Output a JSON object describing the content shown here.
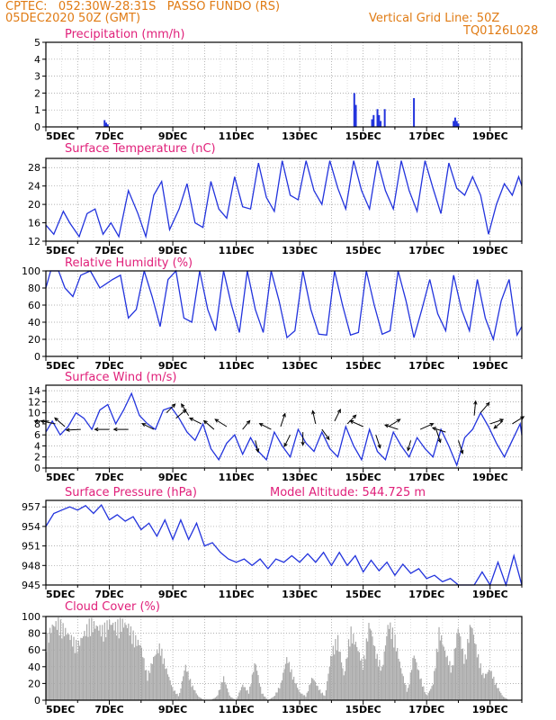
{
  "header": {
    "line1": "CPTEC:   052:30W-28:31S   PASSO FUNDO (RS)",
    "line2": "05DEC2020 50Z (GMT)",
    "grid_note": "Vertical Grid Line: 50Z",
    "code": "TQ0126L028"
  },
  "colors": {
    "header": "#e07b14",
    "title": "#e0207a",
    "line": "#2233dd",
    "cloud": "#a9a9a9",
    "arrows": "#000000",
    "grid": "#999999"
  },
  "chart_data": [
    {
      "type": "bar",
      "title": "Precipitation (mm/h)",
      "ylim": [
        0,
        5
      ],
      "yticks": [
        0,
        1,
        2,
        3,
        4,
        5
      ],
      "xticks": [
        "5DEC",
        "7DEC",
        "9DEC",
        "11DEC",
        "13DEC",
        "15DEC",
        "17DEC",
        "19DEC"
      ],
      "xlim_days": [
        5,
        20
      ],
      "grid": "dotted",
      "points": [
        [
          6.85,
          0.4
        ],
        [
          6.9,
          0.25
        ],
        [
          6.95,
          0.15
        ],
        [
          14.72,
          2.0
        ],
        [
          14.77,
          1.3
        ],
        [
          15.28,
          0.45
        ],
        [
          15.33,
          0.7
        ],
        [
          15.45,
          1.05
        ],
        [
          15.5,
          0.7
        ],
        [
          15.55,
          0.35
        ],
        [
          15.68,
          1.05
        ],
        [
          16.6,
          1.7
        ],
        [
          17.85,
          0.35
        ],
        [
          17.9,
          0.55
        ],
        [
          17.95,
          0.35
        ],
        [
          18.0,
          0.2
        ]
      ]
    },
    {
      "type": "line",
      "title": "Surface Temperature (nC)",
      "ylim": [
        12,
        30
      ],
      "yticks": [
        12,
        16,
        20,
        24,
        28
      ],
      "xticks": [
        "5DEC",
        "7DEC",
        "9DEC",
        "11DEC",
        "13DEC",
        "15DEC",
        "17DEC",
        "19DEC"
      ],
      "xlim_days": [
        5,
        20
      ],
      "grid": "dotted",
      "x": [
        5.0,
        5.25,
        5.55,
        5.75,
        6.05,
        6.3,
        6.55,
        6.8,
        7.05,
        7.3,
        7.6,
        7.9,
        8.15,
        8.4,
        8.65,
        8.9,
        9.2,
        9.45,
        9.7,
        9.95,
        10.2,
        10.45,
        10.7,
        10.95,
        11.2,
        11.45,
        11.7,
        11.95,
        12.2,
        12.45,
        12.7,
        12.95,
        13.2,
        13.45,
        13.7,
        13.95,
        14.2,
        14.45,
        14.7,
        14.95,
        15.2,
        15.45,
        15.7,
        15.95,
        16.2,
        16.45,
        16.7,
        16.95,
        17.2,
        17.45,
        17.7,
        17.95,
        18.2,
        18.45,
        18.7,
        18.95,
        19.2,
        19.45,
        19.7,
        19.9,
        20.0
      ],
      "values": [
        15.5,
        13.5,
        18.5,
        16.0,
        13.0,
        18.0,
        19.0,
        13.5,
        16.0,
        13.0,
        23.0,
        18.0,
        13.0,
        22.0,
        25.0,
        14.5,
        19.0,
        24.5,
        16.0,
        15.0,
        25.0,
        19.0,
        17.0,
        26.0,
        19.5,
        19.0,
        29.0,
        21.5,
        18.5,
        29.5,
        22.0,
        21.0,
        29.5,
        23.0,
        20.0,
        29.5,
        23.5,
        19.0,
        29.5,
        23.0,
        19.0,
        29.5,
        23.0,
        19.0,
        29.5,
        23.0,
        18.5,
        29.5,
        23.5,
        18.0,
        29.0,
        23.5,
        22.0,
        26.0,
        22.0,
        13.5,
        20.0,
        24.5,
        22.0,
        26.0,
        24.0
      ]
    },
    {
      "type": "line",
      "title": "Relative Humidity (%)",
      "ylim": [
        0,
        100
      ],
      "yticks": [
        0,
        20,
        40,
        60,
        80,
        100
      ],
      "xticks": [
        "5DEC",
        "7DEC",
        "9DEC",
        "11DEC",
        "13DEC",
        "15DEC",
        "17DEC",
        "19DEC"
      ],
      "xlim_days": [
        5,
        20
      ],
      "grid": "dotted",
      "x": [
        5.0,
        5.15,
        5.4,
        5.6,
        5.85,
        6.1,
        6.4,
        6.7,
        6.9,
        7.1,
        7.35,
        7.6,
        7.85,
        8.1,
        8.35,
        8.6,
        8.85,
        9.1,
        9.35,
        9.6,
        9.85,
        10.1,
        10.35,
        10.6,
        10.85,
        11.1,
        11.35,
        11.6,
        11.85,
        12.1,
        12.35,
        12.6,
        12.85,
        13.1,
        13.35,
        13.6,
        13.85,
        14.1,
        14.35,
        14.6,
        14.85,
        15.1,
        15.35,
        15.6,
        15.85,
        16.1,
        16.35,
        16.6,
        16.85,
        17.1,
        17.35,
        17.6,
        17.85,
        18.1,
        18.35,
        18.6,
        18.85,
        19.1,
        19.35,
        19.6,
        19.85,
        20.0
      ],
      "values": [
        80,
        100,
        100,
        80,
        70,
        95,
        100,
        80,
        85,
        90,
        95,
        45,
        55,
        100,
        70,
        35,
        90,
        100,
        45,
        40,
        100,
        55,
        30,
        100,
        60,
        28,
        100,
        55,
        28,
        100,
        65,
        22,
        30,
        100,
        55,
        26,
        25,
        100,
        60,
        25,
        28,
        100,
        60,
        26,
        30,
        100,
        65,
        22,
        55,
        90,
        50,
        30,
        95,
        55,
        30,
        90,
        45,
        20,
        65,
        90,
        25,
        35
      ]
    },
    {
      "type": "line",
      "title": "Surface Wind (m/s)",
      "ylim": [
        0,
        15
      ],
      "yticks": [
        0,
        2,
        4,
        6,
        8,
        10,
        12,
        14
      ],
      "xticks": [
        "5DEC",
        "7DEC",
        "9DEC",
        "11DEC",
        "13DEC",
        "15DEC",
        "17DEC",
        "19DEC"
      ],
      "xlim_days": [
        5,
        20
      ],
      "grid": "dotted",
      "x": [
        5.0,
        5.2,
        5.45,
        5.7,
        5.95,
        6.2,
        6.45,
        6.7,
        6.95,
        7.2,
        7.45,
        7.7,
        7.95,
        8.2,
        8.45,
        8.7,
        8.95,
        9.2,
        9.45,
        9.7,
        9.95,
        10.2,
        10.45,
        10.7,
        10.95,
        11.2,
        11.45,
        11.7,
        11.95,
        12.2,
        12.45,
        12.7,
        12.95,
        13.2,
        13.45,
        13.7,
        13.95,
        14.2,
        14.45,
        14.7,
        14.95,
        15.2,
        15.45,
        15.7,
        15.95,
        16.2,
        16.45,
        16.7,
        16.95,
        17.2,
        17.45,
        17.7,
        17.95,
        18.2,
        18.45,
        18.7,
        18.95,
        19.2,
        19.45,
        19.7,
        19.95,
        20.0
      ],
      "values": [
        6.5,
        8.5,
        6.0,
        7.5,
        10.0,
        9.0,
        7.0,
        10.5,
        11.5,
        8.0,
        10.5,
        13.5,
        9.5,
        8.0,
        7.0,
        10.5,
        11.0,
        9.0,
        6.5,
        5.0,
        8.0,
        3.5,
        1.5,
        4.5,
        6.0,
        2.5,
        5.5,
        3.0,
        1.5,
        6.5,
        4.0,
        2.0,
        7.0,
        4.5,
        3.0,
        6.5,
        3.5,
        2.0,
        7.5,
        4.0,
        1.5,
        7.0,
        3.0,
        1.5,
        6.5,
        4.0,
        2.0,
        5.5,
        3.5,
        2.0,
        7.0,
        4.0,
        0.5,
        5.5,
        7.0,
        10.0,
        7.5,
        4.5,
        2.0,
        5.0,
        8.0,
        6.0
      ]
    },
    {
      "type": "line",
      "title": "Surface Pressure (hPa)",
      "ylim": [
        945,
        958
      ],
      "yticks": [
        945,
        948,
        951,
        954,
        957
      ],
      "xticks": [
        "5DEC",
        "7DEC",
        "9DEC",
        "11DEC",
        "13DEC",
        "15DEC",
        "17DEC",
        "19DEC"
      ],
      "xlim_days": [
        5,
        20
      ],
      "grid": "dotted",
      "x": [
        5.0,
        5.25,
        5.5,
        5.75,
        6.0,
        6.25,
        6.5,
        6.75,
        7.0,
        7.25,
        7.5,
        7.75,
        8.0,
        8.25,
        8.5,
        8.75,
        9.0,
        9.25,
        9.5,
        9.75,
        10.0,
        10.25,
        10.5,
        10.75,
        11.0,
        11.25,
        11.5,
        11.75,
        12.0,
        12.25,
        12.5,
        12.75,
        13.0,
        13.25,
        13.5,
        13.75,
        14.0,
        14.25,
        14.5,
        14.75,
        15.0,
        15.25,
        15.5,
        15.75,
        16.0,
        16.25,
        16.5,
        16.75,
        17.0,
        17.25,
        17.5,
        17.75,
        18.0,
        18.25,
        18.5,
        18.75,
        19.0,
        19.25,
        19.5,
        19.75,
        20.0
      ],
      "values": [
        954.0,
        956.0,
        956.5,
        957.0,
        956.5,
        957.2,
        956.0,
        957.3,
        955.0,
        955.8,
        954.8,
        955.5,
        953.5,
        954.5,
        952.5,
        955.0,
        952.0,
        955.0,
        952.0,
        954.5,
        951.0,
        951.5,
        950.0,
        949.0,
        948.5,
        949.0,
        948.0,
        949.0,
        947.5,
        949.0,
        948.5,
        949.5,
        948.5,
        949.8,
        948.5,
        950.0,
        948.0,
        950.0,
        948.0,
        949.5,
        947.0,
        948.8,
        947.2,
        948.5,
        946.5,
        948.2,
        946.8,
        947.5,
        946.0,
        946.5,
        945.5,
        946.0,
        945.0,
        944.5,
        945.0,
        947.0,
        944.5,
        948.5,
        945.0,
        949.5,
        945.0
      ]
    },
    {
      "type": "area",
      "title": "Cloud Cover (%)",
      "ylim": [
        0,
        100
      ],
      "yticks": [
        0,
        20,
        40,
        60,
        80,
        100
      ],
      "xticks": [
        "5DEC",
        "7DEC",
        "9DEC",
        "11DEC",
        "13DEC",
        "15DEC",
        "17DEC",
        "19DEC"
      ],
      "xlim_days": [
        5,
        20
      ],
      "grid": "dotted",
      "x": [
        5.0,
        5.2,
        5.4,
        5.6,
        5.8,
        6.0,
        6.2,
        6.4,
        6.6,
        6.8,
        7.0,
        7.2,
        7.4,
        7.6,
        7.8,
        8.0,
        8.2,
        8.4,
        8.6,
        8.8,
        9.0,
        9.2,
        9.4,
        9.6,
        9.8,
        10.0,
        10.2,
        10.4,
        10.6,
        10.8,
        11.0,
        11.2,
        11.4,
        11.6,
        11.8,
        12.0,
        12.2,
        12.4,
        12.6,
        12.8,
        13.0,
        13.2,
        13.4,
        13.6,
        13.8,
        14.0,
        14.2,
        14.4,
        14.6,
        14.8,
        15.0,
        15.2,
        15.4,
        15.6,
        15.8,
        16.0,
        16.2,
        16.4,
        16.6,
        16.8,
        17.0,
        17.2,
        17.4,
        17.6,
        17.8,
        18.0,
        18.2,
        18.4,
        18.6,
        18.8,
        19.0,
        19.2,
        19.4,
        19.6,
        19.8,
        20.0
      ],
      "values": [
        75,
        95,
        100,
        90,
        80,
        70,
        85,
        100,
        95,
        90,
        100,
        95,
        100,
        95,
        80,
        70,
        30,
        55,
        70,
        40,
        15,
        5,
        45,
        20,
        5,
        0,
        0,
        5,
        30,
        5,
        0,
        20,
        10,
        50,
        10,
        0,
        5,
        20,
        55,
        30,
        10,
        5,
        30,
        15,
        5,
        60,
        80,
        30,
        90,
        70,
        45,
        100,
        60,
        40,
        100,
        80,
        40,
        10,
        60,
        30,
        5,
        20,
        90,
        60,
        40,
        95,
        50,
        100,
        60,
        30,
        40,
        20,
        5,
        0,
        0,
        0
      ]
    }
  ],
  "extra": {
    "model_altitude": "Model Altitude: 544.725 m"
  },
  "wind_arrows": [
    {
      "day": 5.1,
      "speed": 8.5,
      "u": -1.0,
      "v": 0.0
    },
    {
      "day": 5.3,
      "speed": 8.0,
      "u": -1.0,
      "v": 0.2
    },
    {
      "day": 5.6,
      "speed": 7.5,
      "u": -0.7,
      "v": 0.6
    },
    {
      "day": 6.1,
      "speed": 7.0,
      "u": -1.0,
      "v": -0.05
    },
    {
      "day": 7.0,
      "speed": 7.0,
      "u": -1.0,
      "v": 0.0
    },
    {
      "day": 7.6,
      "speed": 7.0,
      "u": -1.0,
      "v": 0.0
    },
    {
      "day": 8.4,
      "speed": 7.0,
      "u": -0.8,
      "v": 0.4
    },
    {
      "day": 8.8,
      "speed": 10.0,
      "u": 0.6,
      "v": 0.6
    },
    {
      "day": 9.1,
      "speed": 9.0,
      "u": 0.7,
      "v": 0.6
    },
    {
      "day": 9.5,
      "speed": 9.5,
      "u": -0.5,
      "v": 0.8
    },
    {
      "day": 9.9,
      "speed": 8.0,
      "u": -0.8,
      "v": 0.4
    },
    {
      "day": 10.3,
      "speed": 7.0,
      "u": -0.7,
      "v": 0.6
    },
    {
      "day": 10.7,
      "speed": 7.5,
      "u": -0.8,
      "v": 0.5
    },
    {
      "day": 11.2,
      "speed": 7.0,
      "u": 0.5,
      "v": 0.6
    },
    {
      "day": 11.6,
      "speed": 5.0,
      "u": 0.2,
      "v": -0.8
    },
    {
      "day": 12.1,
      "speed": 7.0,
      "u": -0.8,
      "v": 0.4
    },
    {
      "day": 12.4,
      "speed": 7.5,
      "u": 0.3,
      "v": 0.9
    },
    {
      "day": 12.7,
      "speed": 6.0,
      "u": -0.4,
      "v": -0.8
    },
    {
      "day": 13.1,
      "speed": 6.5,
      "u": 0.0,
      "v": -0.9
    },
    {
      "day": 13.5,
      "speed": 8.0,
      "u": -0.2,
      "v": 0.9
    },
    {
      "day": 13.7,
      "speed": 7.0,
      "u": 0.5,
      "v": -0.7
    },
    {
      "day": 14.1,
      "speed": 8.5,
      "u": 0.4,
      "v": 0.8
    },
    {
      "day": 14.5,
      "speed": 8.0,
      "u": 0.6,
      "v": 0.6
    },
    {
      "day": 15.0,
      "speed": 7.5,
      "u": -0.9,
      "v": 0.4
    },
    {
      "day": 15.4,
      "speed": 6.0,
      "u": 0.3,
      "v": -0.9
    },
    {
      "day": 15.8,
      "speed": 7.5,
      "u": 0.8,
      "v": 0.5
    },
    {
      "day": 16.1,
      "speed": 7.0,
      "u": -0.9,
      "v": 0.3
    },
    {
      "day": 16.5,
      "speed": 5.0,
      "u": -0.2,
      "v": -0.7
    },
    {
      "day": 16.8,
      "speed": 7.0,
      "u": 0.9,
      "v": 0.4
    },
    {
      "day": 17.3,
      "speed": 7.0,
      "u": 0.3,
      "v": -0.9
    },
    {
      "day": 17.6,
      "speed": 6.5,
      "u": -0.9,
      "v": 0.3
    },
    {
      "day": 18.0,
      "speed": 5.0,
      "u": 0.3,
      "v": -0.9
    },
    {
      "day": 18.5,
      "speed": 9.5,
      "u": 0.1,
      "v": 1.0
    },
    {
      "day": 18.7,
      "speed": 10.0,
      "u": 0.6,
      "v": 0.7
    },
    {
      "day": 19.0,
      "speed": 8.0,
      "u": 0.9,
      "v": 0.3
    },
    {
      "day": 19.4,
      "speed": 8.5,
      "u": -0.6,
      "v": -0.5
    },
    {
      "day": 19.7,
      "speed": 8.0,
      "u": 0.8,
      "v": 0.5
    }
  ]
}
